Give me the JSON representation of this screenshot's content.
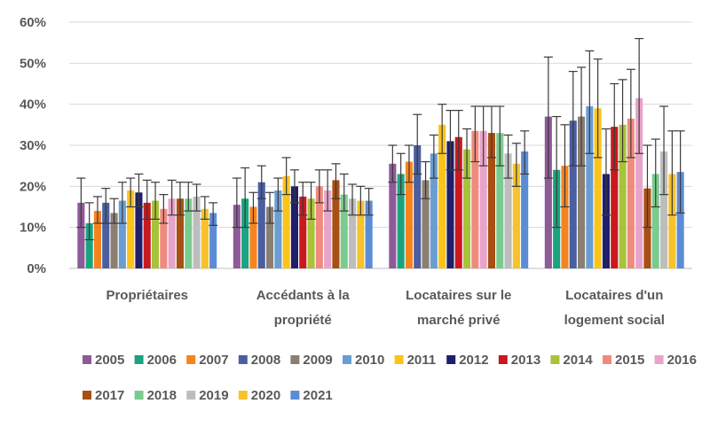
{
  "chart_data": {
    "type": "bar",
    "categories": [
      [
        "Propriétaires"
      ],
      [
        "Accédants à la",
        "propriété"
      ],
      [
        "Locataires sur le",
        "marché privé"
      ],
      [
        "Locataires d'un",
        "logement social"
      ]
    ],
    "ylim": [
      0,
      60
    ],
    "yticks": [
      "0%",
      "10%",
      "20%",
      "30%",
      "40%",
      "50%",
      "60%"
    ],
    "grid": true,
    "legend_position": "bottom",
    "error_bars": true,
    "series": [
      {
        "name": "2005",
        "color": "#8E5A98",
        "values": [
          16,
          15.5,
          25.5,
          37
        ],
        "err_low": [
          10,
          10,
          21,
          22
        ],
        "err_high": [
          22,
          22,
          30,
          51.5
        ]
      },
      {
        "name": "2006",
        "color": "#1BA37F",
        "values": [
          11,
          17,
          23,
          24
        ],
        "err_low": [
          7,
          10,
          18,
          10
        ],
        "err_high": [
          16,
          24.5,
          28,
          37
        ]
      },
      {
        "name": "2007",
        "color": "#F5841F",
        "values": [
          14,
          15,
          26,
          25
        ],
        "err_low": [
          11,
          11,
          21,
          15
        ],
        "err_high": [
          17.5,
          18.5,
          30,
          35
        ]
      },
      {
        "name": "2008",
        "color": "#4A5EA0",
        "values": [
          16,
          21,
          30,
          36
        ],
        "err_low": [
          11,
          17,
          23,
          25
        ],
        "err_high": [
          19.5,
          25,
          37.5,
          48
        ]
      },
      {
        "name": "2009",
        "color": "#8B7F72",
        "values": [
          13.5,
          15,
          21.5,
          37
        ],
        "err_low": [
          11,
          11,
          17,
          25
        ],
        "err_high": [
          17,
          18.5,
          26,
          49
        ]
      },
      {
        "name": "2010",
        "color": "#6A9ED3",
        "values": [
          16.5,
          19,
          28,
          39.5
        ],
        "err_low": [
          11,
          14,
          22,
          28
        ],
        "err_high": [
          21,
          22,
          32.5,
          53
        ]
      },
      {
        "name": "2011",
        "color": "#FCC419",
        "values": [
          19,
          22.5,
          35,
          39
        ],
        "err_low": [
          15,
          18,
          28,
          27
        ],
        "err_high": [
          22,
          27,
          40,
          51
        ]
      },
      {
        "name": "2012",
        "color": "#1F1F6B",
        "values": [
          18.5,
          20,
          31,
          23
        ],
        "err_low": [
          15,
          16,
          24,
          13
        ],
        "err_high": [
          23,
          24,
          38.5,
          34
        ]
      },
      {
        "name": "2013",
        "color": "#C8191E",
        "values": [
          16,
          17.5,
          32,
          34.5
        ],
        "err_low": [
          12,
          13,
          24,
          24
        ],
        "err_high": [
          21.5,
          21,
          38.5,
          45
        ]
      },
      {
        "name": "2014",
        "color": "#A8C23A",
        "values": [
          16.5,
          17,
          29,
          35
        ],
        "err_low": [
          12,
          12,
          22,
          26
        ],
        "err_high": [
          21,
          21,
          34,
          46
        ]
      },
      {
        "name": "2015",
        "color": "#F08A7E",
        "values": [
          14.5,
          20,
          33.5,
          36.5
        ],
        "err_low": [
          11,
          16,
          26,
          27
        ],
        "err_high": [
          18,
          24,
          39.5,
          48.5
        ]
      },
      {
        "name": "2016",
        "color": "#E7A4C8",
        "values": [
          17,
          19,
          33.5,
          41.5
        ],
        "err_low": [
          13,
          14,
          25,
          28
        ],
        "err_high": [
          21.5,
          24,
          39.5,
          56
        ]
      },
      {
        "name": "2017",
        "color": "#A84F14",
        "values": [
          17,
          21.5,
          33,
          19.5
        ],
        "err_low": [
          13,
          17,
          27,
          10
        ],
        "err_high": [
          21,
          25.5,
          39.5,
          30
        ]
      },
      {
        "name": "2018",
        "color": "#7BCB8F",
        "values": [
          17,
          18,
          33,
          23
        ],
        "err_low": [
          14,
          14,
          25,
          15
        ],
        "err_high": [
          21,
          23,
          39.5,
          31.5
        ]
      },
      {
        "name": "2019",
        "color": "#BDBDBD",
        "values": [
          17.5,
          17,
          28,
          28.5
        ],
        "err_low": [
          14,
          13,
          22,
          18
        ],
        "err_high": [
          20.5,
          20.5,
          32.5,
          39.5
        ]
      },
      {
        "name": "2020",
        "color": "#F7C22A",
        "values": [
          14.5,
          16.5,
          25.5,
          23
        ],
        "err_low": [
          12,
          13,
          20,
          13
        ],
        "err_high": [
          17.5,
          20,
          30.5,
          33.5
        ]
      },
      {
        "name": "2021",
        "color": "#5B8CD6",
        "values": [
          13.5,
          16.5,
          28.5,
          23.5
        ],
        "err_low": [
          10.5,
          13,
          23,
          13.5
        ],
        "err_high": [
          16,
          19.5,
          33.5,
          33.5
        ]
      }
    ]
  }
}
